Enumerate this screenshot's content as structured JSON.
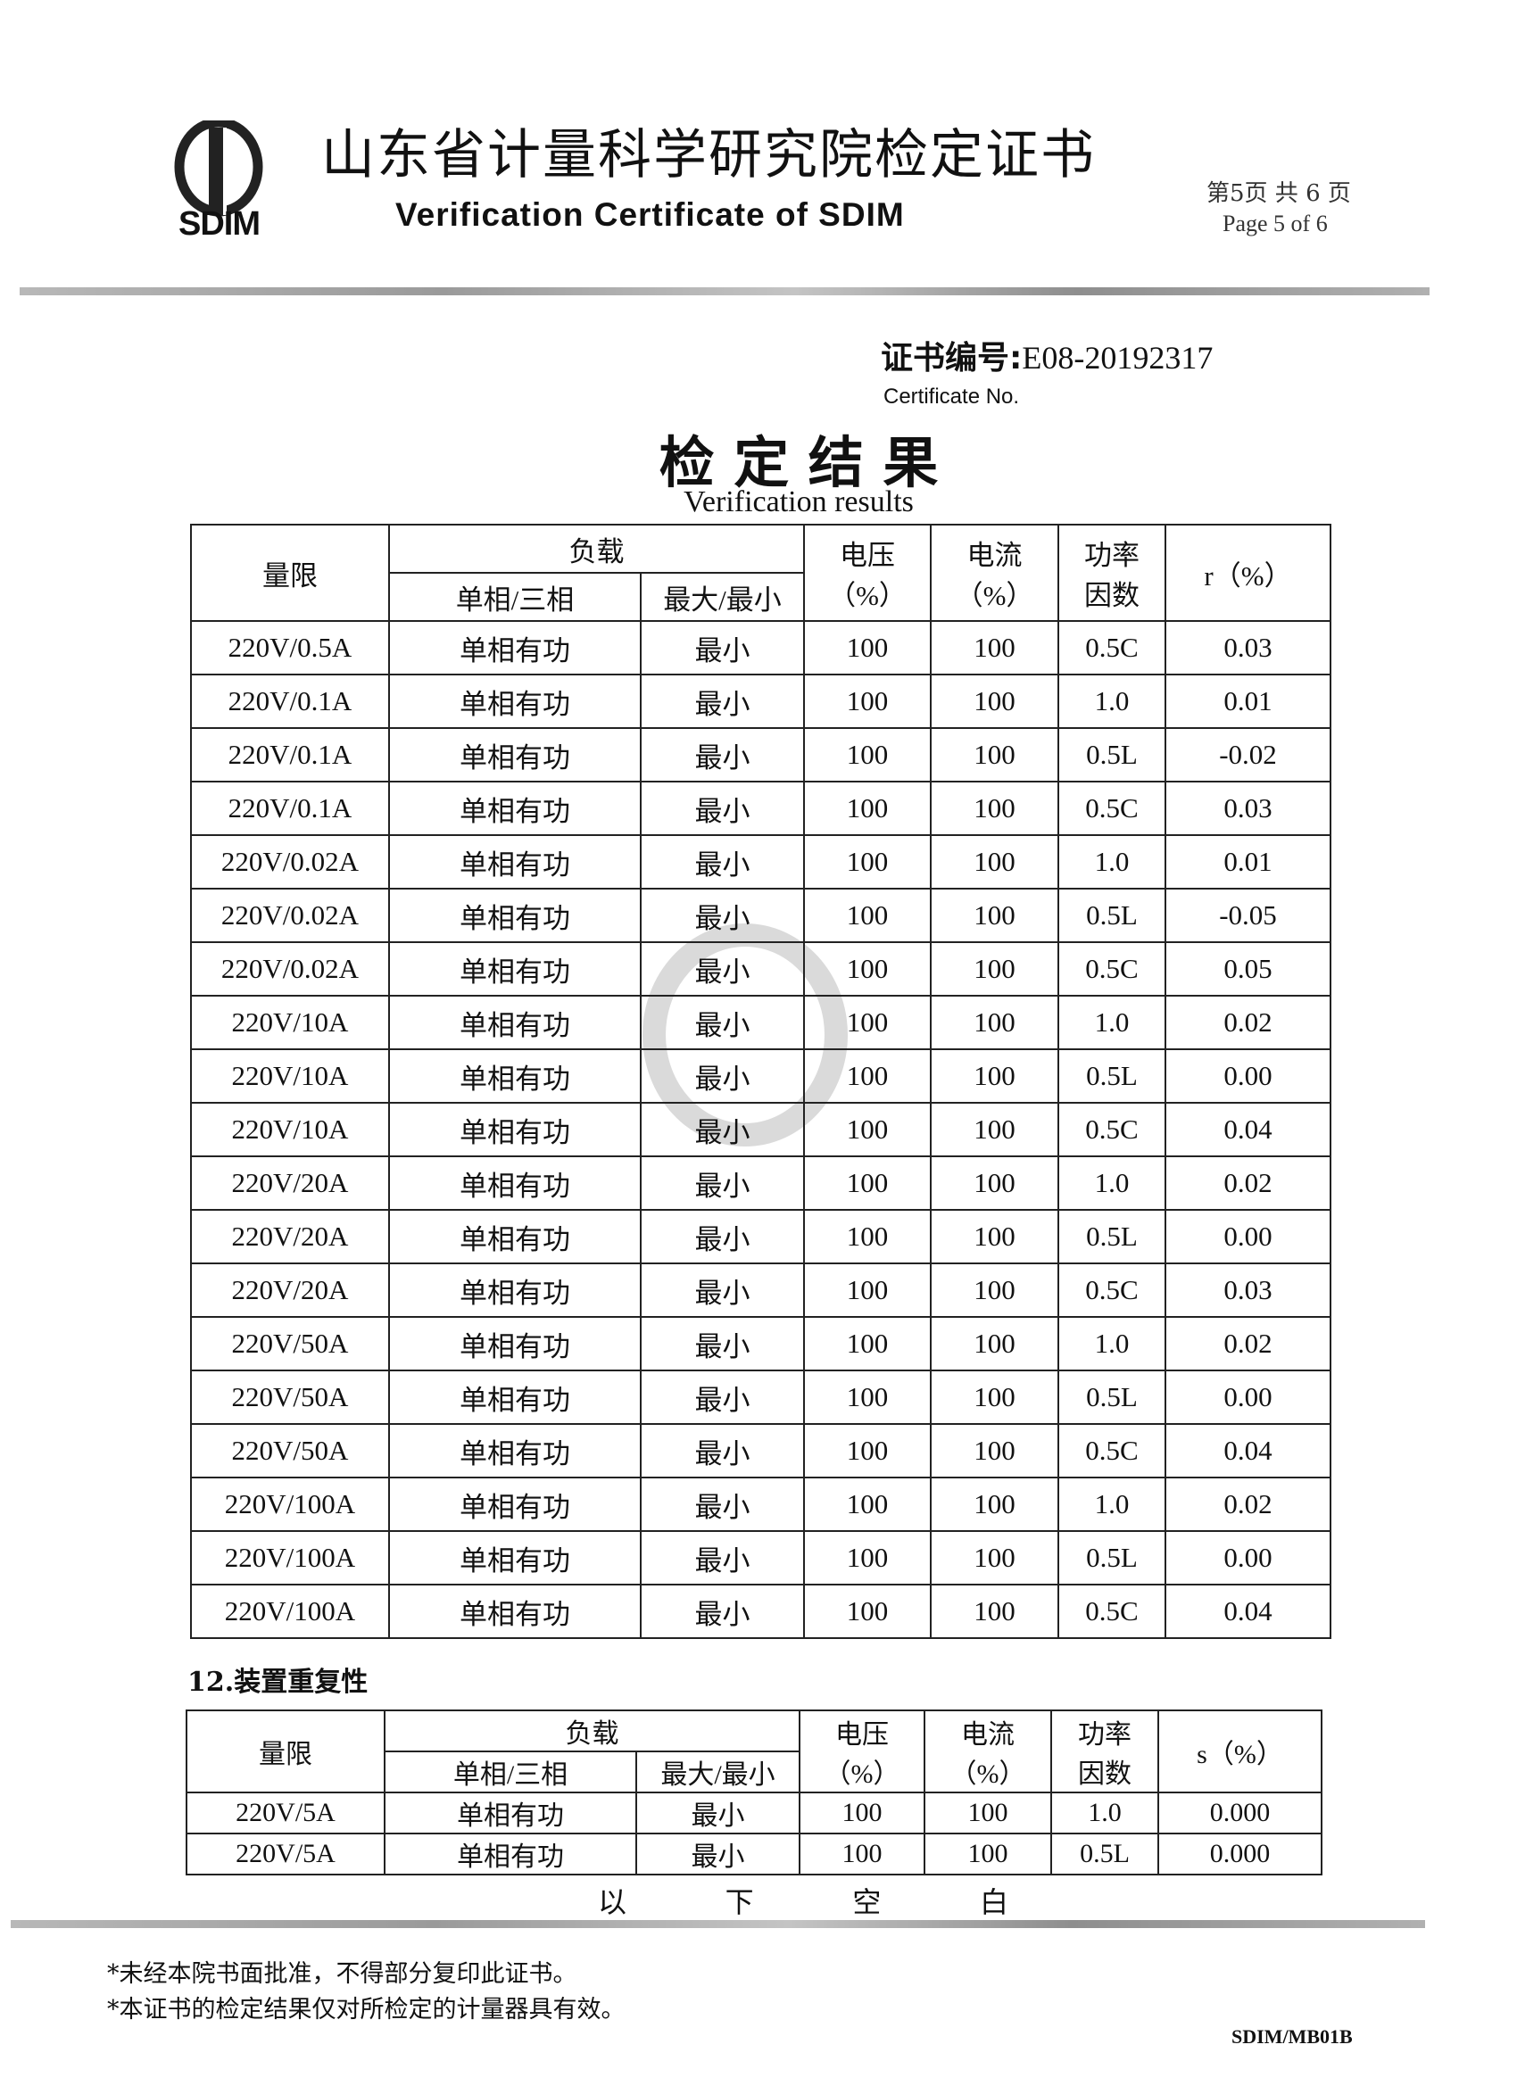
{
  "header": {
    "logo_text": "SDIM",
    "title_cn": "山东省计量科学研究院检定证书",
    "title_en": "Verification Certificate of SDIM",
    "page_cn": "第5页 共 6 页",
    "page_en": "Page 5 of 6"
  },
  "certificate": {
    "number_label": "证书编号:",
    "number": "E08-20192317",
    "number_label_en": "Certificate No."
  },
  "section_title_cn": "检 定 结 果",
  "section_title_en": "Verification results",
  "table1": {
    "headers": {
      "range": "量限",
      "load": "负载",
      "phase": "单相/三相",
      "maxmin": "最大/最小",
      "voltage": "电压\n（%）",
      "current": "电流\n（%）",
      "pf": "功率\n因数",
      "r": "r（%）"
    },
    "rows": [
      [
        "220V/0.5A",
        "单相有功",
        "最小",
        "100",
        "100",
        "0.5C",
        "0.03"
      ],
      [
        "220V/0.1A",
        "单相有功",
        "最小",
        "100",
        "100",
        "1.0",
        "0.01"
      ],
      [
        "220V/0.1A",
        "单相有功",
        "最小",
        "100",
        "100",
        "0.5L",
        "-0.02"
      ],
      [
        "220V/0.1A",
        "单相有功",
        "最小",
        "100",
        "100",
        "0.5C",
        "0.03"
      ],
      [
        "220V/0.02A",
        "单相有功",
        "最小",
        "100",
        "100",
        "1.0",
        "0.01"
      ],
      [
        "220V/0.02A",
        "单相有功",
        "最小",
        "100",
        "100",
        "0.5L",
        "-0.05"
      ],
      [
        "220V/0.02A",
        "单相有功",
        "最小",
        "100",
        "100",
        "0.5C",
        "0.05"
      ],
      [
        "220V/10A",
        "单相有功",
        "最小",
        "100",
        "100",
        "1.0",
        "0.02"
      ],
      [
        "220V/10A",
        "单相有功",
        "最小",
        "100",
        "100",
        "0.5L",
        "0.00"
      ],
      [
        "220V/10A",
        "单相有功",
        "最小",
        "100",
        "100",
        "0.5C",
        "0.04"
      ],
      [
        "220V/20A",
        "单相有功",
        "最小",
        "100",
        "100",
        "1.0",
        "0.02"
      ],
      [
        "220V/20A",
        "单相有功",
        "最小",
        "100",
        "100",
        "0.5L",
        "0.00"
      ],
      [
        "220V/20A",
        "单相有功",
        "最小",
        "100",
        "100",
        "0.5C",
        "0.03"
      ],
      [
        "220V/50A",
        "单相有功",
        "最小",
        "100",
        "100",
        "1.0",
        "0.02"
      ],
      [
        "220V/50A",
        "单相有功",
        "最小",
        "100",
        "100",
        "0.5L",
        "0.00"
      ],
      [
        "220V/50A",
        "单相有功",
        "最小",
        "100",
        "100",
        "0.5C",
        "0.04"
      ],
      [
        "220V/100A",
        "单相有功",
        "最小",
        "100",
        "100",
        "1.0",
        "0.02"
      ],
      [
        "220V/100A",
        "单相有功",
        "最小",
        "100",
        "100",
        "0.5L",
        "0.00"
      ],
      [
        "220V/100A",
        "单相有功",
        "最小",
        "100",
        "100",
        "0.5C",
        "0.04"
      ]
    ]
  },
  "section12_title": "12.装置重复性",
  "table2": {
    "headers": {
      "range": "量限",
      "load": "负载",
      "phase": "单相/三相",
      "maxmin": "最大/最小",
      "voltage": "电压\n（%）",
      "current": "电流\n（%）",
      "pf": "功率\n因数",
      "s": "s（%）"
    },
    "rows": [
      [
        "220V/5A",
        "单相有功",
        "最小",
        "100",
        "100",
        "1.0",
        "0.000"
      ],
      [
        "220V/5A",
        "单相有功",
        "最小",
        "100",
        "100",
        "0.5L",
        "0.000"
      ]
    ]
  },
  "blank_below": [
    "以",
    "下",
    "空",
    "白"
  ],
  "notes": [
    "*未经本院书面批准，不得部分复印此证书。",
    "*本证书的检定结果仅对所检定的计量器具有效。"
  ],
  "form_code": "SDIM/MB01B"
}
